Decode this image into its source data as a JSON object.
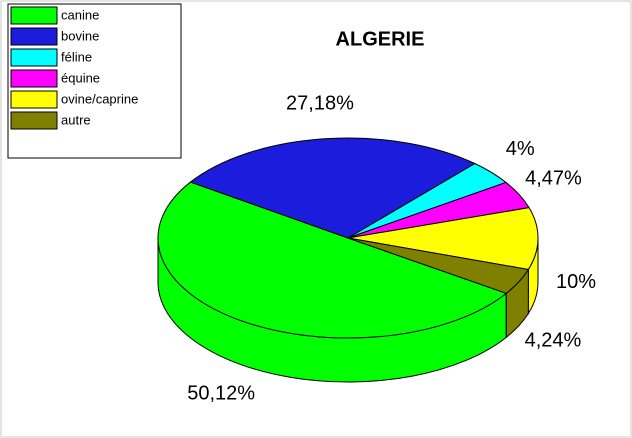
{
  "chart_data": {
    "type": "pie3d",
    "title": "ALGERIE",
    "categories": [
      "canine",
      "bovine",
      "féline",
      "équine",
      "ovine/caprine",
      "autre"
    ],
    "values": [
      50.12,
      27.18,
      4,
      4.47,
      10,
      4.24
    ],
    "value_labels": [
      "50,12%",
      "27,18%",
      "4%",
      "4,47%",
      "10%",
      "4,24%"
    ],
    "colors": [
      "#00ff00",
      "#1c1cdc",
      "#00ffff",
      "#ff00ff",
      "#ffff00",
      "#808000"
    ],
    "legend": "top-left"
  }
}
